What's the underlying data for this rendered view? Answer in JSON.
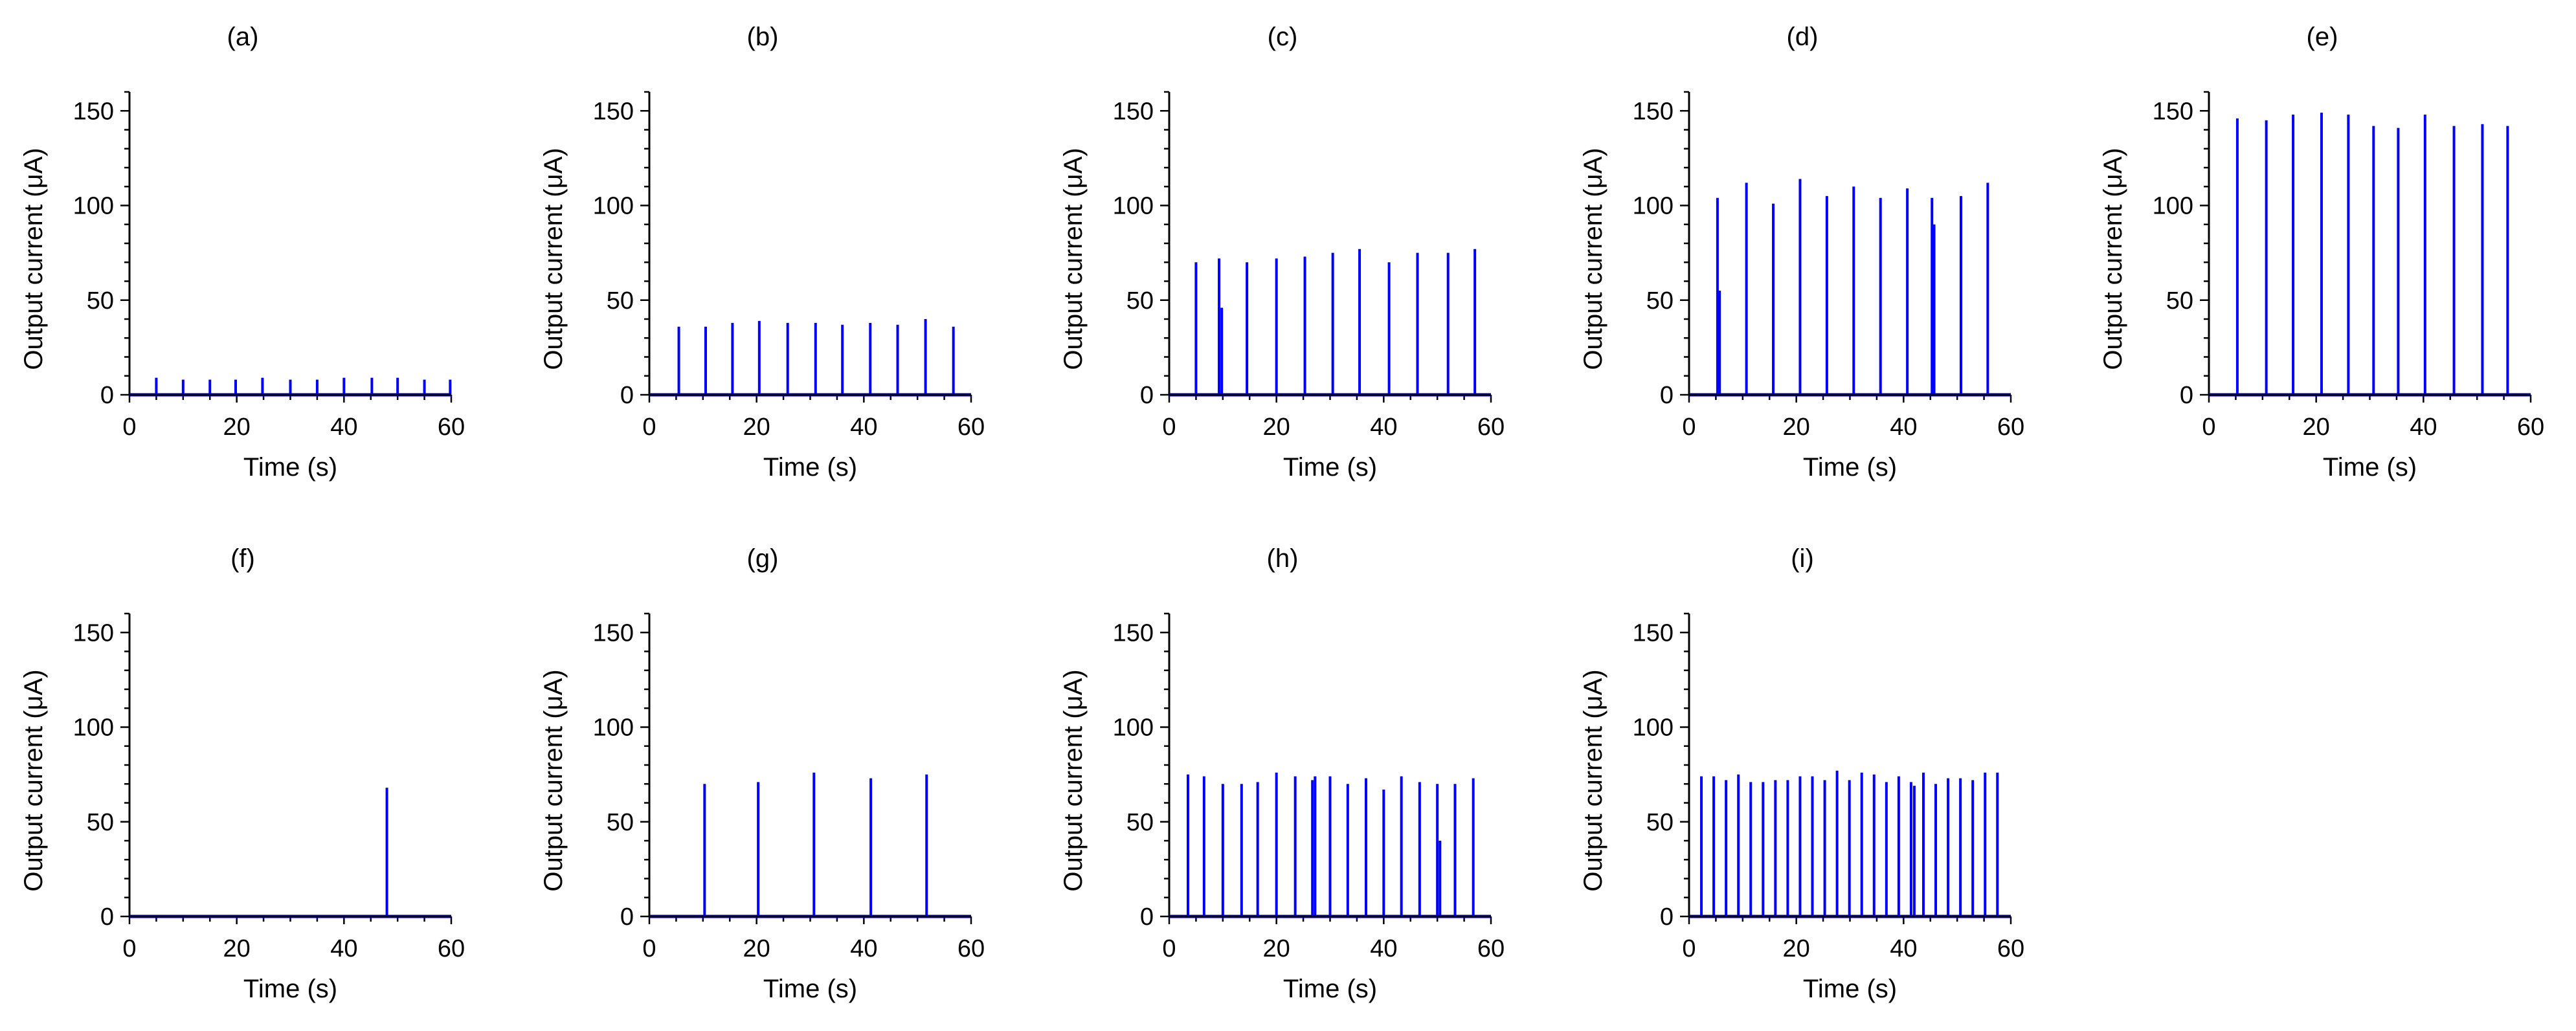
{
  "figure": {
    "trace_color": "#0000FF",
    "axis_color": "#000000",
    "background": "#FFFFFF"
  },
  "chart_data": [
    {
      "panel": "(a)",
      "type": "line",
      "xlabel": "Time (s)",
      "ylabel": "Output current (μA)",
      "xlim": [
        0,
        60
      ],
      "ylim": [
        0,
        160
      ],
      "xticks": [
        0,
        20,
        40,
        60
      ],
      "yticks": [
        0,
        50,
        100,
        150
      ],
      "baseline": 0,
      "spikes": [
        {
          "t": 5.0,
          "i": 9
        },
        {
          "t": 10.0,
          "i": 8
        },
        {
          "t": 15.0,
          "i": 8
        },
        {
          "t": 19.8,
          "i": 8
        },
        {
          "t": 24.8,
          "i": 9
        },
        {
          "t": 30.0,
          "i": 8
        },
        {
          "t": 35.0,
          "i": 8
        },
        {
          "t": 40.0,
          "i": 9
        },
        {
          "t": 45.2,
          "i": 9
        },
        {
          "t": 50.0,
          "i": 9
        },
        {
          "t": 55.0,
          "i": 8
        },
        {
          "t": 59.8,
          "i": 8
        }
      ]
    },
    {
      "panel": "(b)",
      "type": "line",
      "xlabel": "Time (s)",
      "ylabel": "Output current (μA)",
      "xlim": [
        0,
        60
      ],
      "ylim": [
        0,
        160
      ],
      "xticks": [
        0,
        20,
        40,
        60
      ],
      "yticks": [
        0,
        50,
        100,
        150
      ],
      "baseline": 0,
      "spikes": [
        {
          "t": 5.5,
          "i": 36
        },
        {
          "t": 10.5,
          "i": 36
        },
        {
          "t": 15.5,
          "i": 38
        },
        {
          "t": 20.5,
          "i": 39
        },
        {
          "t": 25.8,
          "i": 38
        },
        {
          "t": 31.0,
          "i": 38
        },
        {
          "t": 36.0,
          "i": 37
        },
        {
          "t": 41.2,
          "i": 38
        },
        {
          "t": 46.3,
          "i": 37
        },
        {
          "t": 51.5,
          "i": 40
        },
        {
          "t": 56.7,
          "i": 36
        }
      ]
    },
    {
      "panel": "(c)",
      "type": "line",
      "xlabel": "Time (s)",
      "ylabel": "Output current (μA)",
      "xlim": [
        0,
        60
      ],
      "ylim": [
        0,
        160
      ],
      "xticks": [
        0,
        20,
        40,
        60
      ],
      "yticks": [
        0,
        50,
        100,
        150
      ],
      "baseline": 0,
      "spikes": [
        {
          "t": 5.0,
          "i": 70
        },
        {
          "t": 9.3,
          "i": 72
        },
        {
          "t": 9.8,
          "i": 46
        },
        {
          "t": 14.5,
          "i": 70
        },
        {
          "t": 20.0,
          "i": 72
        },
        {
          "t": 25.3,
          "i": 73
        },
        {
          "t": 30.5,
          "i": 75
        },
        {
          "t": 35.5,
          "i": 77
        },
        {
          "t": 41.0,
          "i": 70
        },
        {
          "t": 46.3,
          "i": 75
        },
        {
          "t": 52.0,
          "i": 75
        },
        {
          "t": 57.0,
          "i": 77
        }
      ]
    },
    {
      "panel": "(d)",
      "type": "line",
      "xlabel": "Time (s)",
      "ylabel": "Output current (μA)",
      "xlim": [
        0,
        60
      ],
      "ylim": [
        0,
        160
      ],
      "xticks": [
        0,
        20,
        40,
        60
      ],
      "yticks": [
        0,
        50,
        100,
        150
      ],
      "baseline": 0,
      "spikes": [
        {
          "t": 5.3,
          "i": 104
        },
        {
          "t": 5.7,
          "i": 55
        },
        {
          "t": 10.7,
          "i": 112
        },
        {
          "t": 15.7,
          "i": 101
        },
        {
          "t": 20.7,
          "i": 114
        },
        {
          "t": 25.7,
          "i": 105
        },
        {
          "t": 30.7,
          "i": 110
        },
        {
          "t": 35.7,
          "i": 104
        },
        {
          "t": 40.7,
          "i": 109
        },
        {
          "t": 45.3,
          "i": 104
        },
        {
          "t": 45.7,
          "i": 90
        },
        {
          "t": 50.7,
          "i": 105
        },
        {
          "t": 55.7,
          "i": 112
        }
      ]
    },
    {
      "panel": "(e)",
      "type": "line",
      "xlabel": "Time (s)",
      "ylabel": "Output current (μA)",
      "xlim": [
        0,
        60
      ],
      "ylim": [
        0,
        160
      ],
      "xticks": [
        0,
        20,
        40,
        60
      ],
      "yticks": [
        0,
        50,
        100,
        150
      ],
      "baseline": 0,
      "spikes": [
        {
          "t": 5.3,
          "i": 146
        },
        {
          "t": 10.7,
          "i": 145
        },
        {
          "t": 15.7,
          "i": 148
        },
        {
          "t": 21.0,
          "i": 149
        },
        {
          "t": 26.0,
          "i": 148
        },
        {
          "t": 30.7,
          "i": 142
        },
        {
          "t": 35.3,
          "i": 141
        },
        {
          "t": 40.3,
          "i": 148
        },
        {
          "t": 45.7,
          "i": 142
        },
        {
          "t": 51.0,
          "i": 143
        },
        {
          "t": 55.7,
          "i": 142
        }
      ]
    },
    {
      "panel": "(f)",
      "type": "line",
      "xlabel": "Time (s)",
      "ylabel": "Output current (μA)",
      "xlim": [
        0,
        60
      ],
      "ylim": [
        0,
        160
      ],
      "xticks": [
        0,
        20,
        40,
        60
      ],
      "yticks": [
        0,
        50,
        100,
        150
      ],
      "baseline": 0,
      "spikes": [
        {
          "t": 48.0,
          "i": 68
        }
      ]
    },
    {
      "panel": "(g)",
      "type": "line",
      "xlabel": "Time (s)",
      "ylabel": "Output current (μA)",
      "xlim": [
        0,
        60
      ],
      "ylim": [
        0,
        160
      ],
      "xticks": [
        0,
        20,
        40,
        60
      ],
      "yticks": [
        0,
        50,
        100,
        150
      ],
      "baseline": 0,
      "spikes": [
        {
          "t": 10.3,
          "i": 70
        },
        {
          "t": 20.3,
          "i": 71
        },
        {
          "t": 30.7,
          "i": 76
        },
        {
          "t": 41.3,
          "i": 73
        },
        {
          "t": 51.7,
          "i": 75
        }
      ]
    },
    {
      "panel": "(h)",
      "type": "line",
      "xlabel": "Time (s)",
      "ylabel": "Output current (μA)",
      "xlim": [
        0,
        60
      ],
      "ylim": [
        0,
        160
      ],
      "xticks": [
        0,
        20,
        40,
        60
      ],
      "yticks": [
        0,
        50,
        100,
        150
      ],
      "baseline": 0,
      "spikes": [
        {
          "t": 3.5,
          "i": 75
        },
        {
          "t": 6.5,
          "i": 74
        },
        {
          "t": 10.0,
          "i": 70
        },
        {
          "t": 13.5,
          "i": 70
        },
        {
          "t": 16.5,
          "i": 71
        },
        {
          "t": 20.0,
          "i": 76
        },
        {
          "t": 23.5,
          "i": 74
        },
        {
          "t": 26.7,
          "i": 72
        },
        {
          "t": 27.2,
          "i": 74
        },
        {
          "t": 30.0,
          "i": 74
        },
        {
          "t": 33.3,
          "i": 70
        },
        {
          "t": 36.7,
          "i": 73
        },
        {
          "t": 40.0,
          "i": 67
        },
        {
          "t": 43.3,
          "i": 74
        },
        {
          "t": 46.7,
          "i": 71
        },
        {
          "t": 50.0,
          "i": 70
        },
        {
          "t": 50.5,
          "i": 40
        },
        {
          "t": 53.3,
          "i": 70
        },
        {
          "t": 56.7,
          "i": 73
        }
      ]
    },
    {
      "panel": "(i)",
      "type": "line",
      "xlabel": "Time (s)",
      "ylabel": "Output current (μA)",
      "xlim": [
        0,
        60
      ],
      "ylim": [
        0,
        160
      ],
      "xticks": [
        0,
        20,
        40,
        60
      ],
      "yticks": [
        0,
        50,
        100,
        150
      ],
      "baseline": 0,
      "spikes": [
        {
          "t": 2.3,
          "i": 74
        },
        {
          "t": 4.6,
          "i": 74
        },
        {
          "t": 6.9,
          "i": 72
        },
        {
          "t": 9.2,
          "i": 75
        },
        {
          "t": 11.5,
          "i": 71
        },
        {
          "t": 13.8,
          "i": 71
        },
        {
          "t": 16.1,
          "i": 72
        },
        {
          "t": 18.4,
          "i": 72
        },
        {
          "t": 20.7,
          "i": 74
        },
        {
          "t": 23.0,
          "i": 74
        },
        {
          "t": 25.3,
          "i": 72
        },
        {
          "t": 27.6,
          "i": 77
        },
        {
          "t": 29.9,
          "i": 72
        },
        {
          "t": 32.2,
          "i": 76
        },
        {
          "t": 34.5,
          "i": 75
        },
        {
          "t": 36.8,
          "i": 71
        },
        {
          "t": 39.1,
          "i": 74
        },
        {
          "t": 41.4,
          "i": 71
        },
        {
          "t": 42.0,
          "i": 69
        },
        {
          "t": 43.7,
          "i": 76
        },
        {
          "t": 46.0,
          "i": 70
        },
        {
          "t": 48.3,
          "i": 73
        },
        {
          "t": 50.6,
          "i": 73
        },
        {
          "t": 52.9,
          "i": 72
        },
        {
          "t": 55.2,
          "i": 76
        },
        {
          "t": 57.5,
          "i": 76
        }
      ]
    }
  ]
}
